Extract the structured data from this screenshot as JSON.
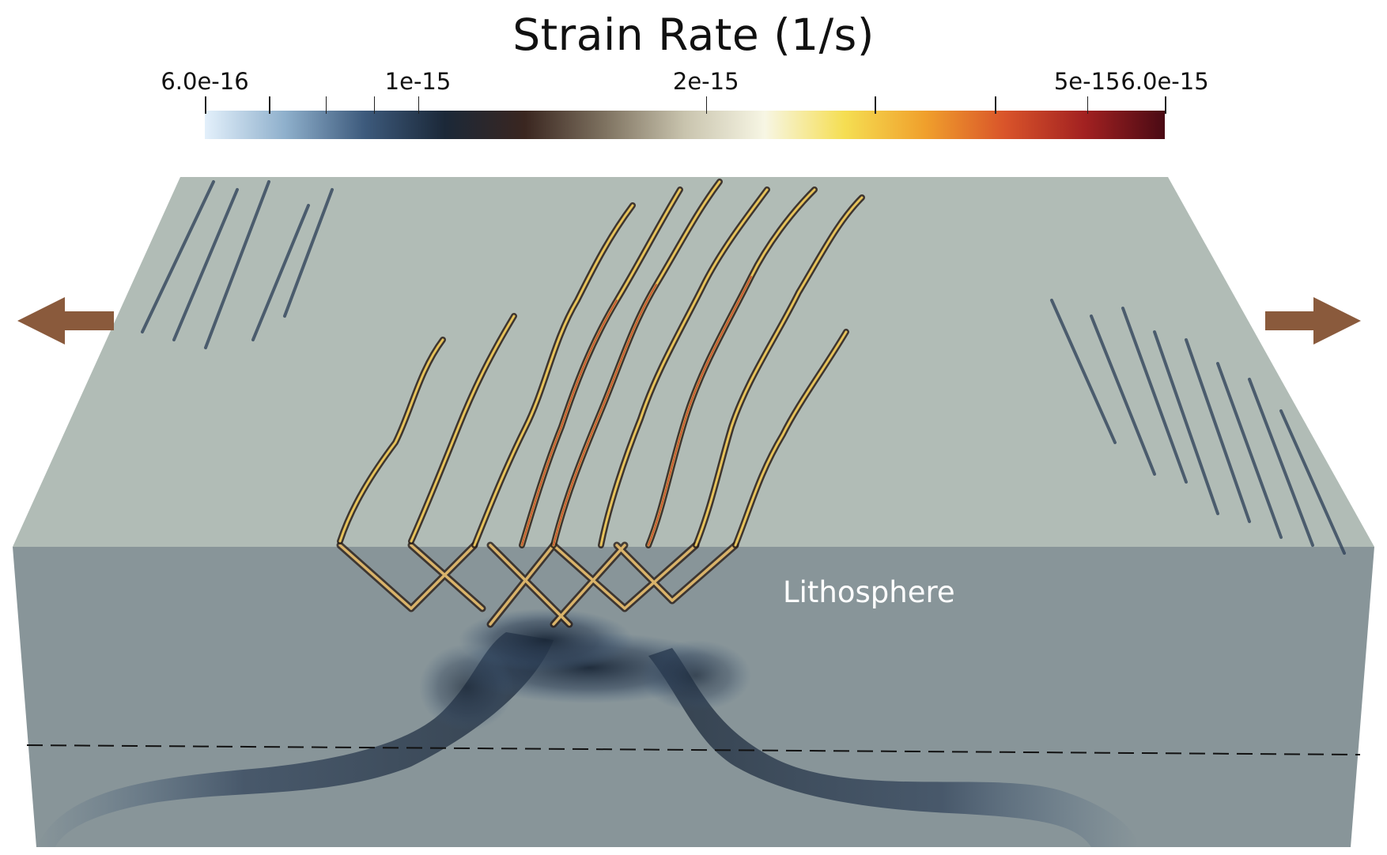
{
  "title": "Strain Rate (1/s)",
  "colorbar": {
    "ticks": [
      {
        "value": 6e-16,
        "label": "6.0e-16",
        "frac": 0.0
      },
      {
        "value": 7e-16,
        "label": "",
        "frac": 0.067
      },
      {
        "value": 8e-16,
        "label": "",
        "frac": 0.126
      },
      {
        "value": 9e-16,
        "label": "",
        "frac": 0.176
      },
      {
        "value": 1e-15,
        "label": "1e-15",
        "frac": 0.222
      },
      {
        "value": 2e-15,
        "label": "2e-15",
        "frac": 0.522
      },
      {
        "value": 3e-15,
        "label": "",
        "frac": 0.698
      },
      {
        "value": 4e-15,
        "label": "",
        "frac": 0.823
      },
      {
        "value": 5e-15,
        "label": "5e-15",
        "frac": 0.919
      },
      {
        "value": 6e-15,
        "label": "6.0e-15",
        "frac": 1.0
      }
    ],
    "scale": "log",
    "range": [
      6e-16,
      6e-15
    ],
    "colormap_stops": [
      "#e3f0fb",
      "#8fb0cc",
      "#3d5a7c",
      "#1b2838",
      "#3a2620",
      "#7e7260",
      "#c9c4ae",
      "#f7f6e4",
      "#f5de52",
      "#f0a02c",
      "#d9542a",
      "#a22121",
      "#4a0a14"
    ]
  },
  "labels": {
    "layer": "Lithosphere"
  },
  "arrows": {
    "left": "arrow-left-icon",
    "right": "arrow-right-icon",
    "color": "#8a5a3c"
  },
  "colors": {
    "top_face": "#b1bcb6",
    "front_face": "#889599",
    "right_face": "#96a3a3"
  }
}
